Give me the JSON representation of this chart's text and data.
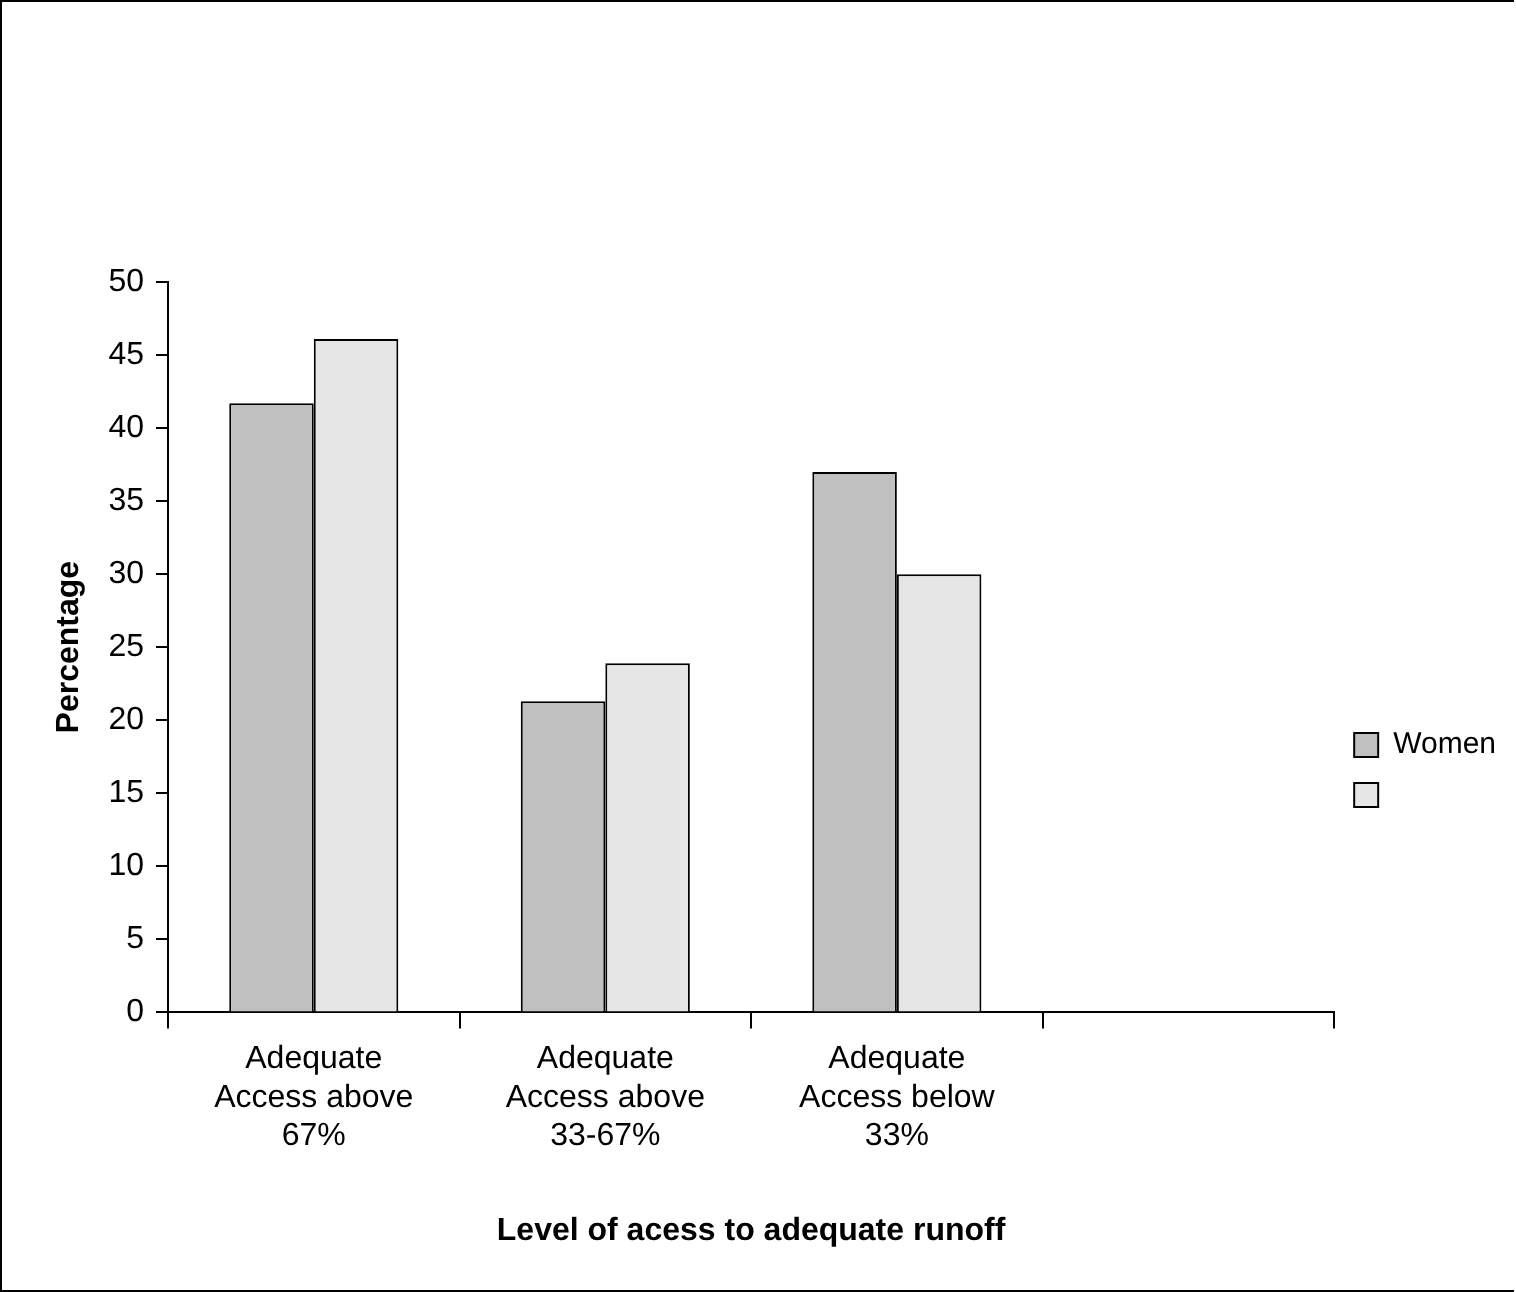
{
  "chart_data": {
    "type": "bar",
    "xlabel": "Level of acess to adequate runoff",
    "ylabel": "Percentage",
    "categories": [
      "Adequate Access above 67%",
      "Adequate Access above 33-67%",
      "Adequate Access below 33%",
      null
    ],
    "series": [
      {
        "name": "Women",
        "color": "#c0c0c0",
        "values": [
          41.7,
          21.3,
          37.0,
          null
        ]
      },
      {
        "color": "#e6e6e6",
        "values": [
          46.1,
          23.9,
          30.0,
          null
        ]
      }
    ],
    "ylim": [
      0,
      50
    ],
    "yticks": [
      0,
      5,
      10,
      15,
      20,
      25,
      30,
      35,
      40,
      45,
      50
    ],
    "grid": false,
    "legend": "right"
  }
}
